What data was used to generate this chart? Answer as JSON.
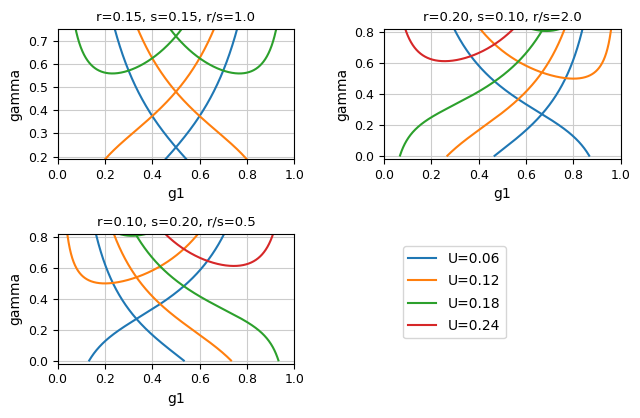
{
  "subplots": [
    {
      "r": 0.15,
      "s": 0.15,
      "title": "r=0.15, s=0.15, r/s=1.0",
      "ylim": [
        0.19,
        0.75
      ]
    },
    {
      "r": 0.2,
      "s": 0.1,
      "title": "r=0.20, s=0.10, r/s=2.0",
      "ylim": [
        -0.02,
        0.82
      ]
    },
    {
      "r": 0.1,
      "s": 0.2,
      "title": "r=0.10, s=0.20, r/s=0.5",
      "ylim": [
        -0.02,
        0.82
      ]
    }
  ],
  "U_values": [
    0.06,
    0.12,
    0.18,
    0.24
  ],
  "U_labels": [
    "U=0.06",
    "U=0.12",
    "U=0.18",
    "U=0.24"
  ],
  "colors": [
    "#1f77b4",
    "#ff7f0e",
    "#2ca02c",
    "#d62728"
  ],
  "xlabel": "g1",
  "ylabel": "gamma",
  "figsize": [
    6.4,
    4.18
  ],
  "dpi": 100,
  "linewidth": 1.5
}
